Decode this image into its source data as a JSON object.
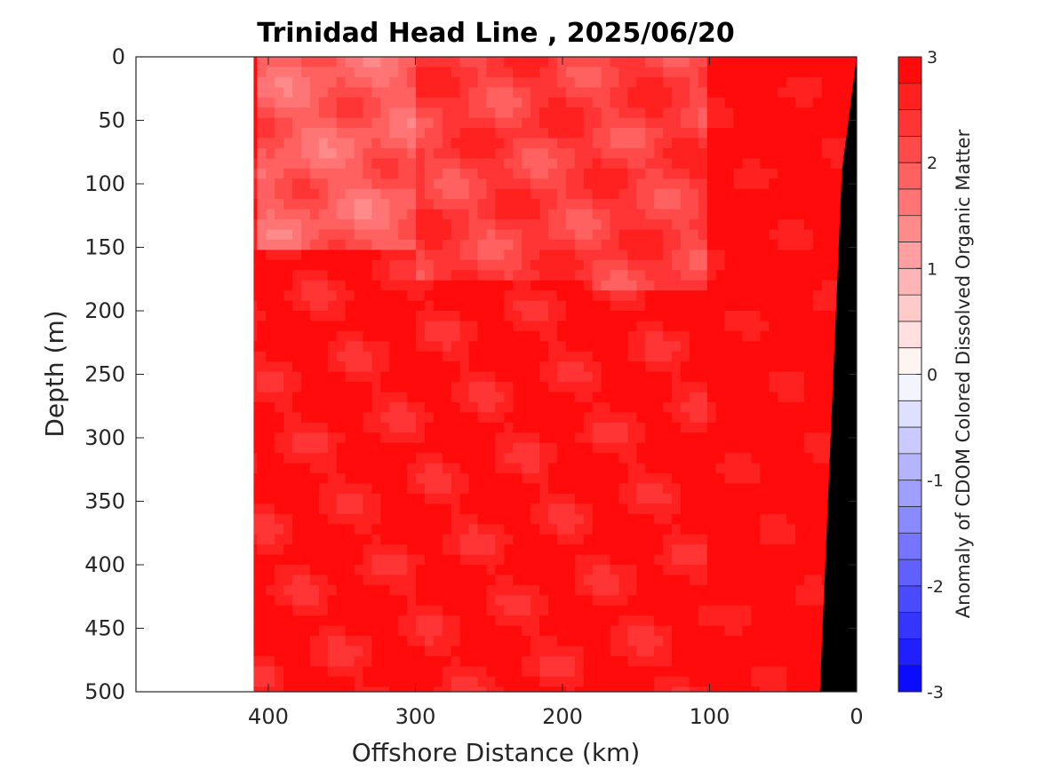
{
  "chart_data": {
    "type": "heatmap",
    "title": "Trinidad Head Line , 2025/06/20",
    "xlabel": "Offshore Distance (km)",
    "ylabel": "Depth (m)",
    "xlim": [
      490,
      0
    ],
    "ylim": [
      500,
      0
    ],
    "x_reversed": true,
    "y_reversed": true,
    "x_ticks": [
      400,
      300,
      200,
      100,
      0
    ],
    "x_tick_labels": [
      "400",
      "300",
      "200",
      "100",
      "0"
    ],
    "y_ticks": [
      0,
      50,
      100,
      150,
      200,
      250,
      300,
      350,
      400,
      450,
      500
    ],
    "y_tick_labels": [
      "0",
      "50",
      "100",
      "150",
      "200",
      "250",
      "300",
      "350",
      "400",
      "450",
      "500"
    ],
    "data_extent_km": [
      0,
      410
    ],
    "colorbar": {
      "label": "Anomaly of CDOM Colored Dissolved Organic Matter",
      "min": -3,
      "max": 3,
      "ticks": [
        3,
        2,
        1,
        0,
        -1,
        -2,
        -3
      ],
      "tick_labels": [
        "3",
        "2",
        "1",
        "0",
        "-1",
        "-2",
        "-3"
      ],
      "levels": 24,
      "high_color": "#ff0000",
      "low_color": "#0000ff",
      "mid_color": "#ffffff"
    },
    "bathymetry_color": "#000000",
    "bathymetry": {
      "distance_km": [
        0,
        10,
        14,
        25
      ],
      "depth_m": [
        0,
        90,
        200,
        500
      ]
    },
    "description_regions": [
      {
        "distance_km": [
          300,
          410
        ],
        "depth_m": [
          0,
          150
        ],
        "anomaly": 1.9
      },
      {
        "distance_km": [
          100,
          300
        ],
        "depth_m": [
          0,
          180
        ],
        "anomaly": 2.3
      },
      {
        "distance_km": [
          0,
          100
        ],
        "depth_m": [
          0,
          500
        ],
        "anomaly": 3.0
      },
      {
        "distance_km": [
          180,
          410
        ],
        "depth_m": [
          180,
          500
        ],
        "anomaly": 2.8
      }
    ]
  }
}
